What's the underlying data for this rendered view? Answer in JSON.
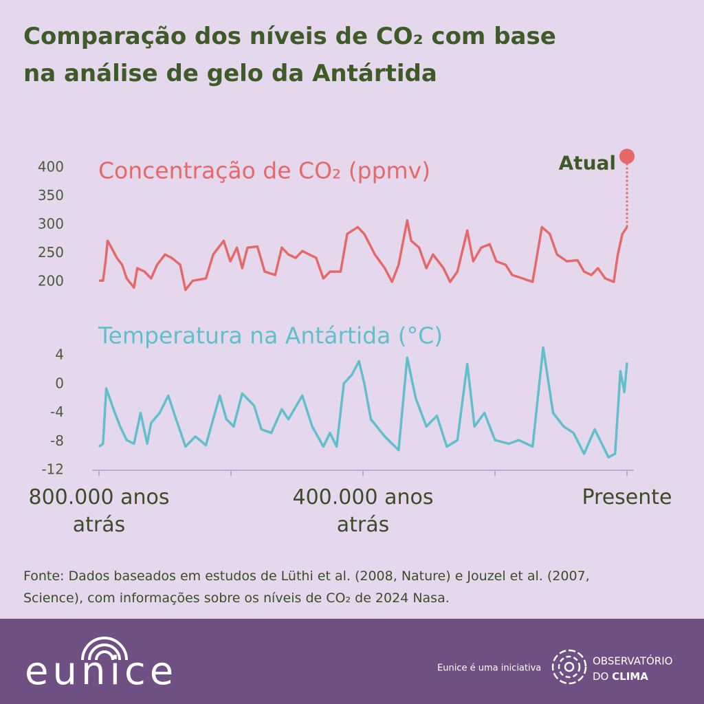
{
  "title": "Comparação dos níveis de CO₂ com base na análise de gelo da Antártida",
  "chart_data": [
    {
      "type": "line",
      "title": "Concentração de CO₂ (ppmv)",
      "color": "#e5686a",
      "xlim": [
        800000,
        0
      ],
      "ylim": [
        200,
        400
      ],
      "yticks": [
        400,
        350,
        300,
        250,
        200
      ],
      "x": [
        800000,
        794000,
        790000,
        787000,
        781000,
        773000,
        765000,
        758000,
        747000,
        742000,
        731000,
        721000,
        712000,
        700000,
        690000,
        677000,
        669000,
        658000,
        638000,
        627000,
        611000,
        601000,
        591000,
        583000,
        575000,
        560000,
        549000,
        533000,
        523000,
        513000,
        502000,
        492000,
        471000,
        460000,
        450000,
        434000,
        424000,
        408000,
        398000,
        382000,
        367000,
        356000,
        346000,
        333000,
        327000,
        315000,
        304000,
        294000,
        278000,
        268000,
        257000,
        242000,
        233000,
        221000,
        208000,
        198000,
        184000,
        174000,
        158000,
        143000,
        129000,
        117000,
        106000,
        91000,
        75000,
        65000,
        54000,
        44000,
        33000,
        20000,
        14000,
        7000,
        0
      ],
      "values": [
        202,
        202,
        236,
        272,
        260,
        242,
        230,
        206,
        190,
        224,
        218,
        206,
        230,
        248,
        242,
        230,
        186,
        202,
        206,
        248,
        272,
        236,
        260,
        224,
        260,
        262,
        218,
        212,
        260,
        248,
        242,
        254,
        242,
        206,
        218,
        218,
        284,
        296,
        284,
        248,
        224,
        200,
        230,
        308,
        272,
        260,
        224,
        248,
        224,
        200,
        218,
        290,
        236,
        260,
        266,
        236,
        230,
        212,
        206,
        200,
        296,
        284,
        248,
        236,
        238,
        218,
        212,
        224,
        206,
        200,
        248,
        284,
        296
      ],
      "annotation": {
        "label": "Atual",
        "value": 420
      }
    },
    {
      "type": "line",
      "title": "Temperatura na Antártida (°C)",
      "color": "#5fbfca",
      "xlim": [
        800000,
        0
      ],
      "ylim": [
        -12,
        4
      ],
      "yticks": [
        4,
        0,
        -4,
        -8,
        -12
      ],
      "xticks": [
        800000,
        600000,
        400000,
        200000,
        0
      ],
      "x_labels": [
        {
          "value": 800000,
          "label": "800.000 anos atrás"
        },
        {
          "value": 400000,
          "label": "400.000 anos atrás"
        },
        {
          "value": 0,
          "label": "Presente"
        }
      ],
      "x": [
        800000,
        794000,
        789000,
        778000,
        768000,
        758000,
        747000,
        737000,
        727000,
        721000,
        708000,
        695000,
        685000,
        669000,
        654000,
        638000,
        617000,
        607000,
        596000,
        583000,
        565000,
        554000,
        539000,
        523000,
        513000,
        492000,
        477000,
        460000,
        450000,
        440000,
        429000,
        417000,
        406000,
        398000,
        388000,
        367000,
        346000,
        333000,
        320000,
        304000,
        288000,
        273000,
        257000,
        242000,
        231000,
        216000,
        200000,
        179000,
        164000,
        143000,
        127000,
        112000,
        96000,
        81000,
        65000,
        49000,
        28000,
        18000,
        10000,
        4000,
        0
      ],
      "values": [
        -8.7,
        -8.3,
        -0.6,
        -3.5,
        -5.9,
        -7.8,
        -8.3,
        -4.0,
        -8.3,
        -5.4,
        -4.0,
        -1.6,
        -4.4,
        -8.7,
        -7.3,
        -8.5,
        -1.6,
        -4.9,
        -5.9,
        -1.3,
        -3.0,
        -6.3,
        -6.8,
        -3.5,
        -4.9,
        -1.6,
        -5.9,
        -8.7,
        -6.8,
        -8.7,
        0.1,
        1.3,
        3.2,
        0.1,
        -4.9,
        -7.3,
        -9.2,
        3.7,
        -2.0,
        -5.9,
        -4.4,
        -8.7,
        -7.8,
        2.8,
        -5.9,
        -4.0,
        -7.8,
        -8.3,
        -7.8,
        -8.7,
        5.1,
        -4.0,
        -5.9,
        -6.8,
        -9.7,
        -6.3,
        -10.2,
        -9.7,
        1.8,
        -1.1,
        3.0
      ]
    }
  ],
  "source": "Fonte: Dados baseados em estudos de Lüthi et al. (2008, Nature) e Jouzel et al. (2007, Science), com informações sobre os níveis de CO₂ de 2024 Nasa.",
  "footer": {
    "logo": "eunice",
    "note": "Eunice é uma iniciativa",
    "partner_line1": "OBSERVATÓRIO",
    "partner_line2a": "DO",
    "partner_line2b": "CLIMA"
  }
}
